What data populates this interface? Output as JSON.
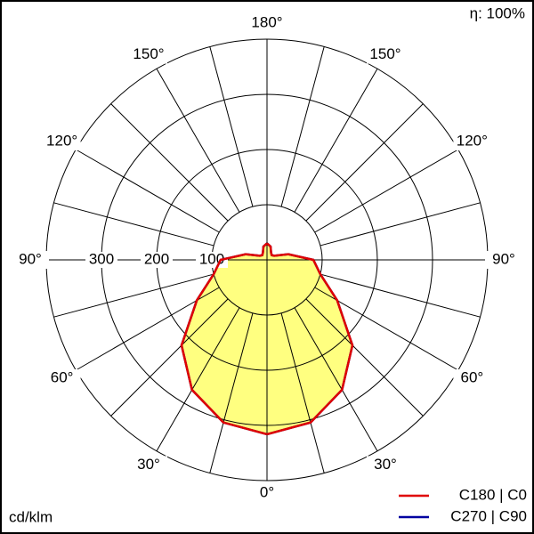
{
  "chart_data": {
    "type": "polar",
    "efficiency_label": "η: 100%",
    "unit_label": "cd/klm",
    "angles": [
      0,
      15,
      30,
      45,
      60,
      75,
      90,
      105,
      120,
      135,
      150,
      165,
      180
    ],
    "angle_ticks": [
      {
        "value": 0,
        "label": "0°"
      },
      {
        "value": 30,
        "label": "30°"
      },
      {
        "value": 60,
        "label": "60°"
      },
      {
        "value": 90,
        "label": "90°"
      },
      {
        "value": 120,
        "label": "120°"
      },
      {
        "value": 150,
        "label": "150°"
      },
      {
        "value": 180,
        "label": "180°"
      }
    ],
    "angle_grid_step": 15,
    "rlim": [
      0,
      400
    ],
    "rticks": [
      100,
      200,
      300
    ],
    "fill_color": "#ffff80",
    "series": [
      {
        "name": "C270 | C90",
        "color": "#0000a0",
        "values": [
          316,
          305,
          272,
          219,
          147,
          100,
          84,
          40,
          15,
          12,
          15,
          25,
          30
        ]
      },
      {
        "name": "C180 | C0",
        "color": "#e00000",
        "values": [
          316,
          305,
          272,
          219,
          147,
          100,
          84,
          40,
          15,
          12,
          15,
          25,
          30
        ]
      }
    ]
  }
}
